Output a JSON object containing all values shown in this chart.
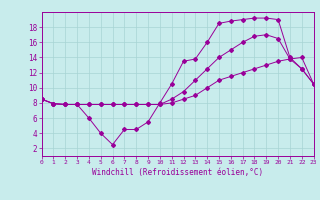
{
  "xlabel": "Windchill (Refroidissement éolien,°C)",
  "bg_color": "#c8ecec",
  "grid_color": "#a8d4d4",
  "line_color": "#990099",
  "xlim": [
    0,
    23
  ],
  "ylim": [
    1,
    20
  ],
  "xticks": [
    0,
    1,
    2,
    3,
    4,
    5,
    6,
    7,
    8,
    9,
    10,
    11,
    12,
    13,
    14,
    15,
    16,
    17,
    18,
    19,
    20,
    21,
    22,
    23
  ],
  "yticks": [
    2,
    4,
    6,
    8,
    10,
    12,
    14,
    16,
    18
  ],
  "series1_x": [
    0,
    1,
    2,
    3,
    4,
    5,
    6,
    7,
    8,
    9,
    10,
    11,
    12,
    13,
    14,
    15,
    16,
    17,
    18,
    19,
    20,
    21,
    22,
    23
  ],
  "series1_y": [
    8.5,
    7.9,
    7.8,
    7.8,
    6.0,
    4.0,
    2.5,
    4.5,
    4.5,
    5.5,
    8.0,
    10.5,
    13.5,
    13.8,
    16.0,
    18.5,
    18.8,
    19.0,
    19.2,
    19.2,
    19.0,
    14.0,
    12.5,
    10.5
  ],
  "series2_x": [
    0,
    1,
    2,
    3,
    4,
    5,
    6,
    7,
    8,
    9,
    10,
    11,
    12,
    13,
    14,
    15,
    16,
    17,
    18,
    19,
    20,
    21,
    22,
    23
  ],
  "series2_y": [
    8.5,
    7.9,
    7.8,
    7.8,
    7.8,
    7.8,
    7.8,
    7.8,
    7.8,
    7.8,
    7.8,
    8.5,
    9.5,
    11.0,
    12.5,
    14.0,
    15.0,
    16.0,
    16.8,
    17.0,
    16.5,
    13.8,
    12.5,
    10.5
  ],
  "series3_x": [
    0,
    1,
    2,
    3,
    4,
    5,
    6,
    7,
    8,
    9,
    10,
    11,
    12,
    13,
    14,
    15,
    16,
    17,
    18,
    19,
    20,
    21,
    22,
    23
  ],
  "series3_y": [
    8.5,
    7.9,
    7.8,
    7.8,
    7.8,
    7.8,
    7.8,
    7.8,
    7.8,
    7.8,
    7.8,
    8.0,
    8.5,
    9.0,
    10.0,
    11.0,
    11.5,
    12.0,
    12.5,
    13.0,
    13.5,
    13.8,
    14.0,
    10.5
  ]
}
